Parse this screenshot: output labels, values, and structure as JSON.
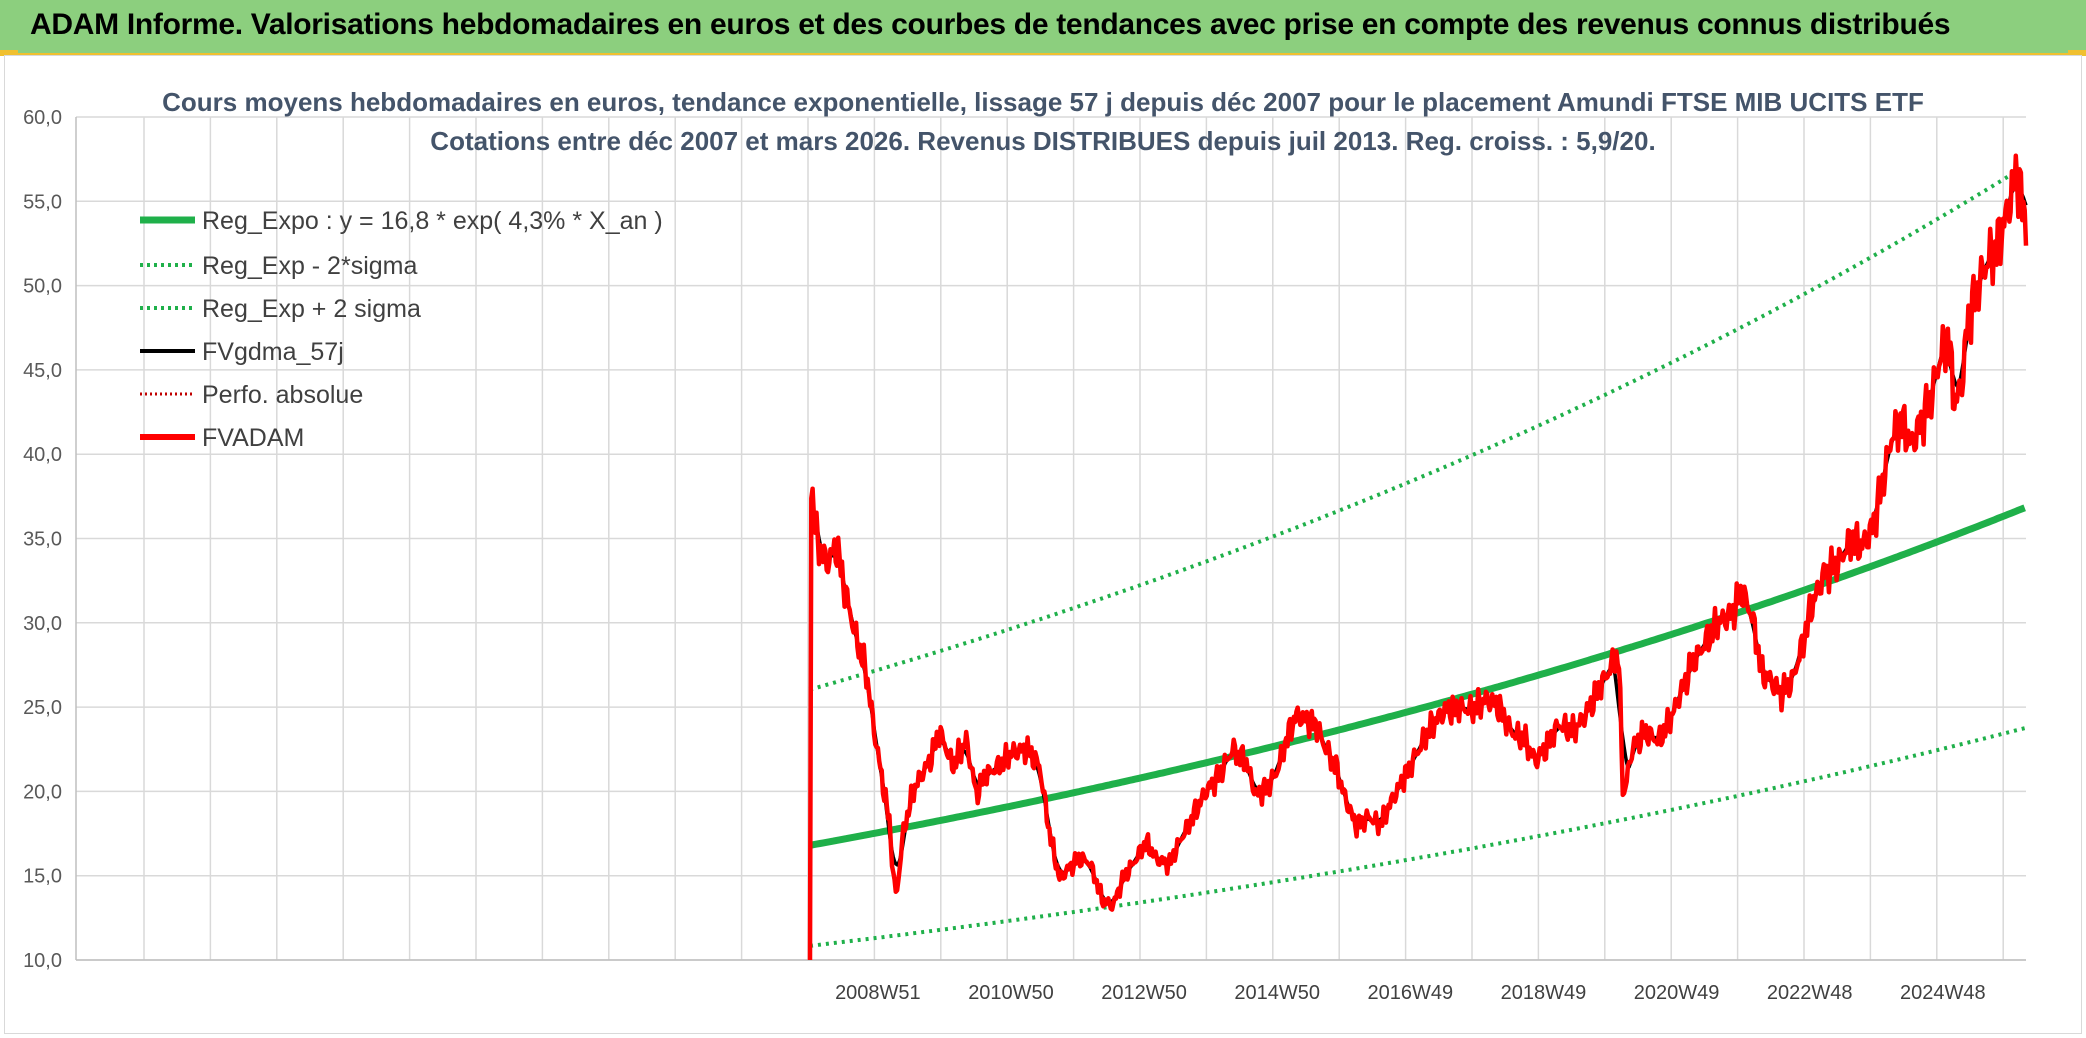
{
  "banner": {
    "title": "ADAM Informe. Valorisations hebdomadaires en euros et des courbes de tendances avec prise en compte des revenus connus distribués"
  },
  "colors": {
    "banner_bg": "#8ccf7e",
    "reg_expo": "#1fb04a",
    "fvgdma": "#000000",
    "fvadam": "#ff0000",
    "perfo": "#c00000"
  },
  "chart_data": {
    "type": "line",
    "title_lines": [
      "Cours moyens hebdomadaires en euros, tendance exponentielle, lissage 57 j depuis déc 2007 pour le placement Amundi FTSE MIB UCITS ETF",
      "Cotations entre déc 2007 et mars 2026. Revenus DISTRIBUES depuis juil 2013. Reg. croiss. : 5,9/20."
    ],
    "ylim": [
      10,
      60
    ],
    "yticks": [
      "10,0",
      "15,0",
      "20,0",
      "25,0",
      "30,0",
      "35,0",
      "40,0",
      "45,0",
      "50,0",
      "55,0",
      "60,0"
    ],
    "xticks": [
      "2008W51",
      "2010W50",
      "2012W50",
      "2014W50",
      "2016W49",
      "2018W49",
      "2020W49",
      "2022W48",
      "2024W48"
    ],
    "grid": true,
    "legend_position": "top-left",
    "regression": {
      "a": 16.8,
      "rate": 0.043,
      "sigma_band": [
        -2,
        2
      ]
    },
    "series": [
      {
        "name": "Reg_Expo : y = 16,8 * exp( 4,3% *  X_an )",
        "style": "solid-thick",
        "color": "#1fb04a"
      },
      {
        "name": "Reg_Exp - 2*sigma",
        "style": "dotted",
        "color": "#1fb04a"
      },
      {
        "name": "Reg_Exp + 2 sigma",
        "style": "dotted",
        "color": "#1fb04a"
      },
      {
        "name": "FVgdma_57j",
        "style": "solid",
        "color": "#000000"
      },
      {
        "name": "Perfo. absolue",
        "style": "dotted",
        "color": "#c00000"
      },
      {
        "name": "FVADAM",
        "style": "solid-thick",
        "color": "#ff0000"
      }
    ],
    "fvadam_anchors": [
      [
        2007.95,
        10.0
      ],
      [
        2007.97,
        38.3
      ],
      [
        2008.05,
        35.0
      ],
      [
        2008.2,
        33.5
      ],
      [
        2008.35,
        34.5
      ],
      [
        2008.5,
        31.5
      ],
      [
        2008.65,
        29.0
      ],
      [
        2008.8,
        27.0
      ],
      [
        2008.9,
        24.0
      ],
      [
        2009.0,
        21.5
      ],
      [
        2009.15,
        18.0
      ],
      [
        2009.2,
        15.0
      ],
      [
        2009.25,
        13.8
      ],
      [
        2009.35,
        17.5
      ],
      [
        2009.5,
        20.0
      ],
      [
        2009.6,
        20.8
      ],
      [
        2009.75,
        21.8
      ],
      [
        2009.9,
        23.5
      ],
      [
        2010.0,
        22.5
      ],
      [
        2010.1,
        21.5
      ],
      [
        2010.3,
        23.0
      ],
      [
        2010.45,
        19.8
      ],
      [
        2010.6,
        21.0
      ],
      [
        2010.8,
        21.5
      ],
      [
        2011.0,
        22.3
      ],
      [
        2011.2,
        22.5
      ],
      [
        2011.4,
        21.5
      ],
      [
        2011.55,
        17.5
      ],
      [
        2011.7,
        14.8
      ],
      [
        2011.85,
        15.5
      ],
      [
        2012.0,
        16.0
      ],
      [
        2012.15,
        15.8
      ],
      [
        2012.35,
        13.5
      ],
      [
        2012.5,
        13.2
      ],
      [
        2012.65,
        14.8
      ],
      [
        2012.85,
        16.0
      ],
      [
        2013.0,
        17.0
      ],
      [
        2013.15,
        16.0
      ],
      [
        2013.35,
        15.7
      ],
      [
        2013.5,
        17.0
      ],
      [
        2013.7,
        18.5
      ],
      [
        2013.9,
        20.0
      ],
      [
        2014.1,
        21.0
      ],
      [
        2014.3,
        22.5
      ],
      [
        2014.5,
        21.8
      ],
      [
        2014.65,
        19.8
      ],
      [
        2014.8,
        20.2
      ],
      [
        2014.95,
        21.0
      ],
      [
        2015.1,
        23.0
      ],
      [
        2015.25,
        24.5
      ],
      [
        2015.4,
        24.3
      ],
      [
        2015.55,
        24.0
      ],
      [
        2015.7,
        22.5
      ],
      [
        2015.85,
        21.5
      ],
      [
        2016.0,
        19.5
      ],
      [
        2016.15,
        18.0
      ],
      [
        2016.35,
        18.5
      ],
      [
        2016.5,
        18.0
      ],
      [
        2016.7,
        19.5
      ],
      [
        2016.9,
        21.0
      ],
      [
        2017.1,
        22.5
      ],
      [
        2017.3,
        24.0
      ],
      [
        2017.5,
        24.8
      ],
      [
        2017.7,
        25.0
      ],
      [
        2017.9,
        24.8
      ],
      [
        2018.1,
        25.5
      ],
      [
        2018.3,
        25.0
      ],
      [
        2018.5,
        23.5
      ],
      [
        2018.7,
        23.0
      ],
      [
        2018.85,
        21.8
      ],
      [
        2019.0,
        22.5
      ],
      [
        2019.2,
        24.0
      ],
      [
        2019.4,
        23.5
      ],
      [
        2019.6,
        24.5
      ],
      [
        2019.8,
        26.0
      ],
      [
        2020.0,
        27.5
      ],
      [
        2020.1,
        28.0
      ],
      [
        2020.17,
        19.5
      ],
      [
        2020.3,
        22.5
      ],
      [
        2020.5,
        23.5
      ],
      [
        2020.7,
        23.0
      ],
      [
        2020.85,
        24.0
      ],
      [
        2021.0,
        25.5
      ],
      [
        2021.2,
        27.5
      ],
      [
        2021.4,
        28.8
      ],
      [
        2021.6,
        30.0
      ],
      [
        2021.8,
        30.5
      ],
      [
        2021.95,
        31.8
      ],
      [
        2022.1,
        30.5
      ],
      [
        2022.25,
        27.0
      ],
      [
        2022.4,
        26.5
      ],
      [
        2022.55,
        25.8
      ],
      [
        2022.7,
        26.5
      ],
      [
        2022.85,
        28.5
      ],
      [
        2023.0,
        31.0
      ],
      [
        2023.2,
        33.0
      ],
      [
        2023.4,
        33.5
      ],
      [
        2023.6,
        35.0
      ],
      [
        2023.75,
        34.5
      ],
      [
        2023.9,
        35.5
      ],
      [
        2024.05,
        38.0
      ],
      [
        2024.2,
        41.0
      ],
      [
        2024.35,
        42.0
      ],
      [
        2024.5,
        40.5
      ],
      [
        2024.65,
        42.0
      ],
      [
        2024.8,
        43.5
      ],
      [
        2024.95,
        46.0
      ],
      [
        2025.05,
        47.0
      ],
      [
        2025.15,
        43.0
      ],
      [
        2025.25,
        44.0
      ],
      [
        2025.35,
        48.0
      ],
      [
        2025.5,
        50.0
      ],
      [
        2025.65,
        51.5
      ],
      [
        2025.8,
        52.5
      ],
      [
        2025.95,
        54.5
      ],
      [
        2026.08,
        57.0
      ],
      [
        2026.15,
        55.0
      ],
      [
        2026.22,
        54.0
      ]
    ]
  },
  "legend_labels": [
    "Reg_Expo : y = 16,8 * exp( 4,3% *  X_an )",
    "Reg_Exp - 2*sigma",
    "Reg_Exp + 2 sigma",
    "FVgdma_57j",
    "Perfo. absolue",
    "FVADAM"
  ]
}
